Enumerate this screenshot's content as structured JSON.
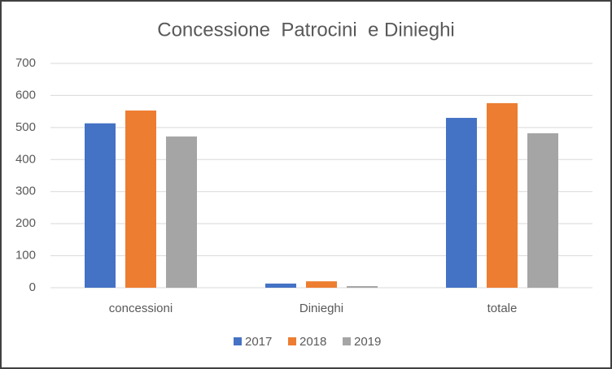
{
  "chart_data": {
    "type": "bar",
    "title": "Concessione  Patrocini  e Dinieghi",
    "categories": [
      "concessioni",
      "Dinieghi",
      "totale"
    ],
    "series": [
      {
        "name": "2017",
        "color": "#4472c4",
        "values": [
          513,
          13,
          530
        ]
      },
      {
        "name": "2018",
        "color": "#ed7d31",
        "values": [
          553,
          20,
          576
        ]
      },
      {
        "name": "2019",
        "color": "#a5a5a5",
        "values": [
          472,
          5,
          482
        ]
      }
    ],
    "ylim": [
      0,
      700
    ],
    "yticks": [
      0,
      100,
      200,
      300,
      400,
      500,
      600,
      700
    ],
    "grid": true,
    "legend": "bottom"
  }
}
